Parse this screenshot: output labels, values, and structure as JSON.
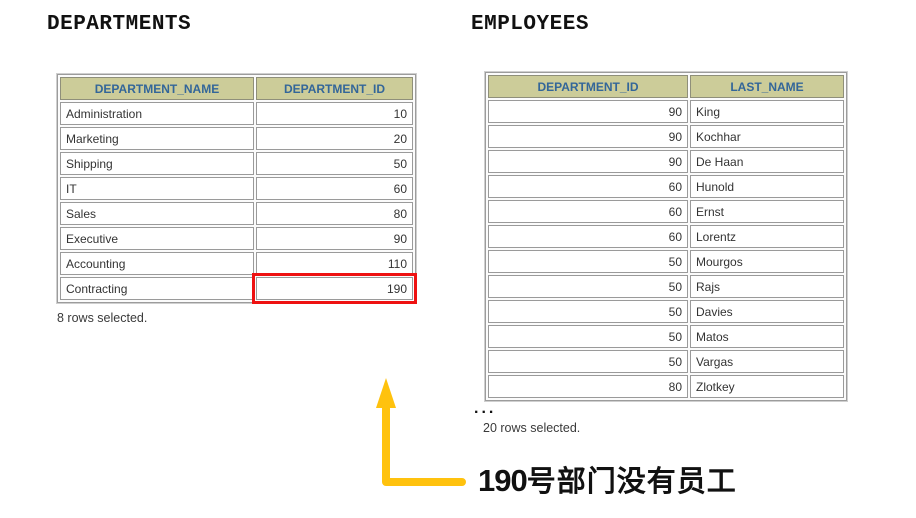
{
  "colors": {
    "header_bg": "#cccc99",
    "header_text": "#336699",
    "highlight_border": "#ee1111",
    "arrow": "#ffc20e"
  },
  "departments": {
    "title": "DEPARTMENTS",
    "columns": [
      "DEPARTMENT_NAME",
      "DEPARTMENT_ID"
    ],
    "rows": [
      [
        "Administration",
        "10"
      ],
      [
        "Marketing",
        "20"
      ],
      [
        "Shipping",
        "50"
      ],
      [
        "IT",
        "60"
      ],
      [
        "Sales",
        "80"
      ],
      [
        "Executive",
        "90"
      ],
      [
        "Accounting",
        "110"
      ],
      [
        "Contracting",
        "190"
      ]
    ],
    "highlight": {
      "row": 7,
      "col": 1,
      "value": "190"
    },
    "footer": "8 rows selected."
  },
  "employees": {
    "title": "EMPLOYEES",
    "columns": [
      "DEPARTMENT_ID",
      "LAST_NAME"
    ],
    "rows": [
      [
        "90",
        "King"
      ],
      [
        "90",
        "Kochhar"
      ],
      [
        "90",
        "De Haan"
      ],
      [
        "60",
        "Hunold"
      ],
      [
        "60",
        "Ernst"
      ],
      [
        "60",
        "Lorentz"
      ],
      [
        "50",
        "Mourgos"
      ],
      [
        "50",
        "Rajs"
      ],
      [
        "50",
        "Davies"
      ],
      [
        "50",
        "Matos"
      ],
      [
        "50",
        "Vargas"
      ],
      [
        "80",
        "Zlotkey"
      ]
    ],
    "ellipsis": "...",
    "footer": "20 rows selected."
  },
  "annotation": {
    "number": "190",
    "text": "号部门没有员工",
    "full_text": "190号部门没有员工",
    "arrow": "yellow-elbow-arrow-pointing-up-at-highlighted-cell"
  }
}
